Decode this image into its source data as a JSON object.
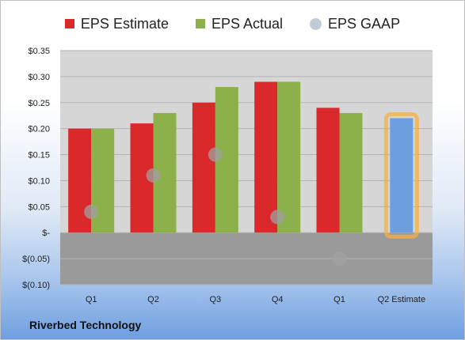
{
  "company_name": "Riverbed Technology",
  "chart_data": {
    "type": "bar",
    "categories": [
      "Q1",
      "Q2",
      "Q3",
      "Q4",
      "Q1",
      "Q2 Estimate"
    ],
    "series": [
      {
        "name": "EPS Estimate",
        "kind": "bar",
        "color": "#d9292b",
        "values": [
          0.2,
          0.21,
          0.25,
          0.29,
          0.24,
          null
        ]
      },
      {
        "name": "EPS Actual",
        "kind": "bar",
        "color": "#8cb04a",
        "values": [
          0.2,
          0.23,
          0.28,
          0.29,
          0.23,
          null
        ]
      },
      {
        "name": "EPS GAAP",
        "kind": "dot",
        "color": "#a0a0a0",
        "values": [
          0.04,
          0.11,
          0.15,
          0.03,
          -0.05,
          null
        ]
      }
    ],
    "forecast": {
      "category": "Q2 Estimate",
      "value": 0.22,
      "color": "#6d9ede",
      "highlight": "#f5b041"
    },
    "ylim": [
      -0.1,
      0.35
    ],
    "ytick_values": [
      -0.1,
      -0.05,
      0,
      0.05,
      0.1,
      0.15,
      0.2,
      0.25,
      0.3,
      0.35
    ],
    "ytick_labels": [
      "$(0.10)",
      "$(0.05)",
      "$-",
      "$0.05",
      "$0.10",
      "$0.15",
      "$0.20",
      "$0.25",
      "$0.30",
      "$0.35"
    ],
    "legend_position": "top",
    "grid": true
  }
}
